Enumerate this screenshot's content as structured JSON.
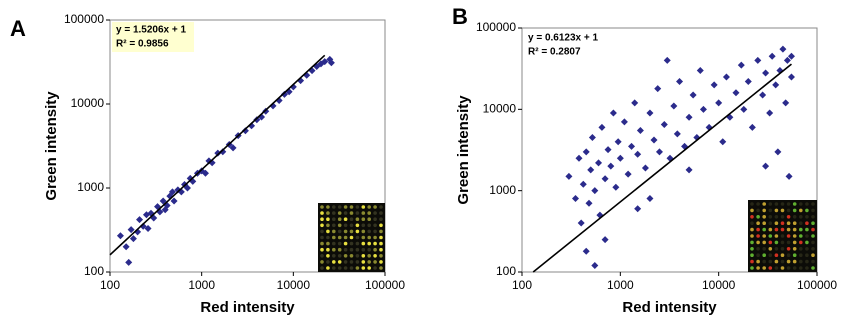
{
  "chart_data": [
    {
      "type": "scatter",
      "label": "A",
      "x_label": "Red intensity",
      "y_label": "Green intensity",
      "equation": "y = 1.5206x + 1",
      "r_squared": "R² = 0.9856",
      "log_x": true,
      "log_y": true,
      "color": "#2b2b8c",
      "xlim": [
        100,
        100000
      ],
      "xticks": [
        100,
        1000,
        10000,
        100000
      ],
      "ylim": [
        100,
        100000
      ],
      "yticks": [
        100,
        1000,
        10000,
        100000
      ],
      "trendline": {
        "x": [
          100,
          22000
        ],
        "y": [
          160,
          38000
        ]
      },
      "x": [
        130,
        150,
        160,
        170,
        180,
        200,
        210,
        230,
        250,
        260,
        280,
        300,
        330,
        350,
        380,
        400,
        420,
        450,
        480,
        500,
        550,
        600,
        650,
        700,
        750,
        800,
        900,
        1000,
        1100,
        1200,
        1300,
        1500,
        1700,
        2000,
        2200,
        2500,
        3000,
        3500,
        4000,
        4500,
        5000,
        6000,
        7000,
        8000,
        9000,
        10000,
        12000,
        14000,
        16000,
        18000,
        20000,
        22000,
        25000,
        26000
      ],
      "y": [
        270,
        200,
        130,
        320,
        250,
        300,
        420,
        350,
        480,
        330,
        500,
        440,
        600,
        520,
        700,
        550,
        620,
        800,
        900,
        700,
        950,
        900,
        1100,
        1000,
        1300,
        1200,
        1500,
        1600,
        1500,
        2100,
        2000,
        2600,
        2700,
        3300,
        3000,
        4200,
        4800,
        5500,
        6500,
        7000,
        8200,
        9500,
        11000,
        13000,
        14000,
        16000,
        19000,
        22000,
        25000,
        28000,
        30000,
        32000,
        34000,
        31000
      ]
    },
    {
      "type": "scatter",
      "label": "B",
      "x_label": "Red intensity",
      "y_label": "Green intensity",
      "equation": "y = 0.6123x + 1",
      "r_squared": "R² = 0.2807",
      "log_x": true,
      "log_y": true,
      "color": "#2b2b8c",
      "xlim": [
        100,
        100000
      ],
      "xticks": [
        100,
        1000,
        10000,
        100000
      ],
      "ylim": [
        100,
        100000
      ],
      "yticks": [
        100,
        1000,
        10000,
        100000
      ],
      "trendline": {
        "x": [
          130,
          55000
        ],
        "y": [
          100,
          36000
        ]
      },
      "x": [
        300,
        350,
        380,
        400,
        420,
        450,
        480,
        500,
        520,
        550,
        600,
        620,
        650,
        700,
        750,
        800,
        850,
        900,
        950,
        1000,
        1100,
        1200,
        1300,
        1400,
        1500,
        1600,
        1800,
        2000,
        2200,
        2400,
        2500,
        2800,
        3000,
        3200,
        3500,
        3800,
        4000,
        4500,
        5000,
        5500,
        6000,
        6500,
        7000,
        8000,
        9000,
        10000,
        11000,
        12000,
        13000,
        15000,
        17000,
        18000,
        20000,
        22000,
        25000,
        28000,
        30000,
        33000,
        35000,
        38000,
        40000,
        42000,
        45000,
        48000,
        50000,
        52000,
        55000,
        55000,
        2000,
        700,
        450,
        550,
        1500,
        5000,
        30000
      ],
      "y": [
        1500,
        800,
        2500,
        400,
        1200,
        3000,
        700,
        1800,
        4500,
        1000,
        2200,
        500,
        6000,
        1400,
        3200,
        2000,
        9000,
        1100,
        4000,
        2500,
        7000,
        1600,
        3500,
        12000,
        2800,
        5500,
        1900,
        9000,
        4200,
        18000,
        3000,
        6500,
        40000,
        2500,
        11000,
        5000,
        22000,
        3500,
        8000,
        15000,
        4500,
        30000,
        10000,
        6000,
        20000,
        12000,
        4000,
        25000,
        8000,
        16000,
        35000,
        10000,
        22000,
        6000,
        40000,
        15000,
        28000,
        9000,
        45000,
        20000,
        3000,
        30000,
        55000,
        12000,
        40000,
        1500,
        25000,
        45000,
        800,
        250,
        180,
        120,
        600,
        1800,
        2000
      ]
    }
  ]
}
